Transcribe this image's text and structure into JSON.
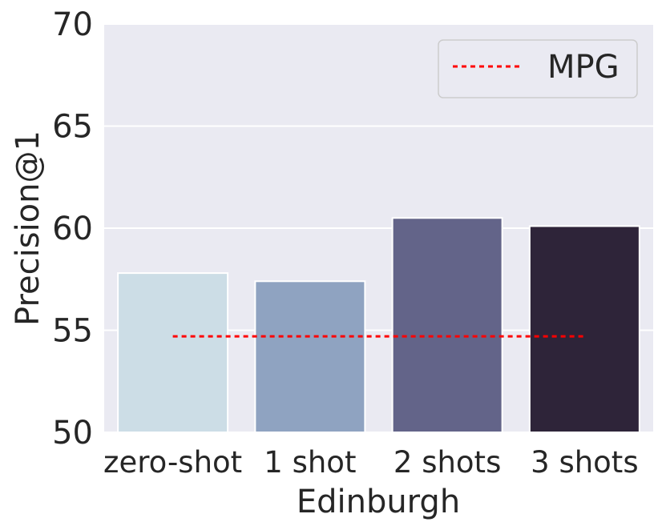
{
  "chart_data": {
    "type": "bar",
    "categories": [
      "zero-shot",
      "1 shot",
      "2 shots",
      "3 shots"
    ],
    "values": [
      57.8,
      57.4,
      60.5,
      60.1
    ],
    "colors": [
      "#ccdde6",
      "#8fa3c1",
      "#636489",
      "#2e2439"
    ],
    "reference_line": {
      "name": "MPG",
      "value": 54.7,
      "color": "#ff0000",
      "style": "dotted",
      "x_range": [
        "zero-shot",
        "3 shots"
      ]
    },
    "xlabel": "Edinburgh",
    "ylabel": "Precision@1",
    "ylim": [
      50,
      70
    ],
    "yticks": [
      "50",
      "55",
      "60",
      "65",
      "70"
    ],
    "grid": true,
    "legend_position": "top-right",
    "background_color": "#eaeaf2"
  }
}
